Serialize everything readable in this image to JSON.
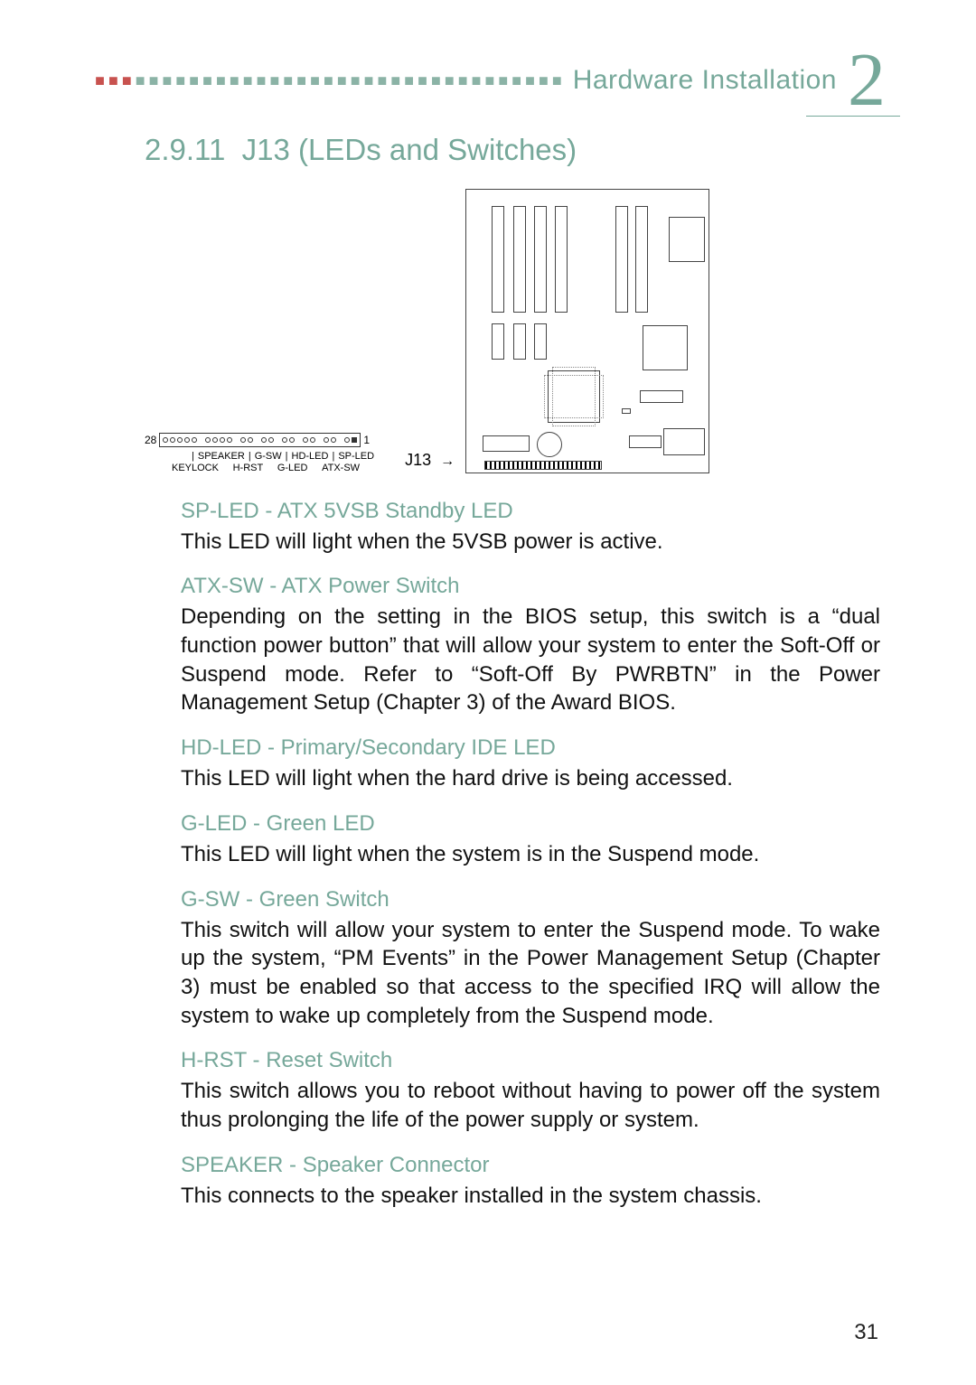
{
  "header": {
    "title": "Hardware Installation",
    "chapter_number": "2",
    "title_color": "#76a89a"
  },
  "section": {
    "number": "2.9.11",
    "title": "J13 (LEDs and Switches)"
  },
  "pin_diagram": {
    "left_num": "28",
    "right_num": "1",
    "top_labels": [
      "SPEAKER",
      "G-SW",
      "HD-LED",
      "SP-LED"
    ],
    "bottom_labels": [
      "KEYLOCK",
      "H-RST",
      "G-LED",
      "ATX-SW"
    ],
    "j13_label": "J13"
  },
  "items": [
    {
      "heading": "SP-LED - ATX 5VSB Standby LED",
      "body": "This LED will light when the 5VSB power is active.",
      "justify": false
    },
    {
      "heading": "ATX-SW - ATX Power Switch",
      "body": "Depending on the setting in the BIOS setup, this switch is a “dual function power button” that will allow your system to enter the Soft-Off or Suspend mode. Refer to “Soft-Off By PWRBTN” in the Power Management Setup (Chapter 3) of the Award BIOS.",
      "justify": true
    },
    {
      "heading": "HD-LED - Primary/Secondary IDE LED",
      "body": "This LED will light when the hard drive is being accessed.",
      "justify": false
    },
    {
      "heading": "G-LED - Green LED",
      "body": "This LED will light when the system is in the Suspend mode.",
      "justify": false
    },
    {
      "heading": "G-SW - Green Switch",
      "body": "This switch will allow your system to enter the Suspend mode. To wake up the system, “PM Events” in the Power Management Setup (Chapter 3) must be enabled so that access to the specified IRQ will allow the system to wake up completely from the Suspend mode.",
      "justify": true
    },
    {
      "heading": "H-RST - Reset Switch",
      "body": "This switch allows you to reboot without having to power off the system thus prolonging the life of the power supply or system.",
      "justify": true
    },
    {
      "heading": "SPEAKER - Speaker Connector",
      "body": "This connects to the speaker installed in the system chassis.",
      "justify": false
    }
  ],
  "page_number": "31"
}
